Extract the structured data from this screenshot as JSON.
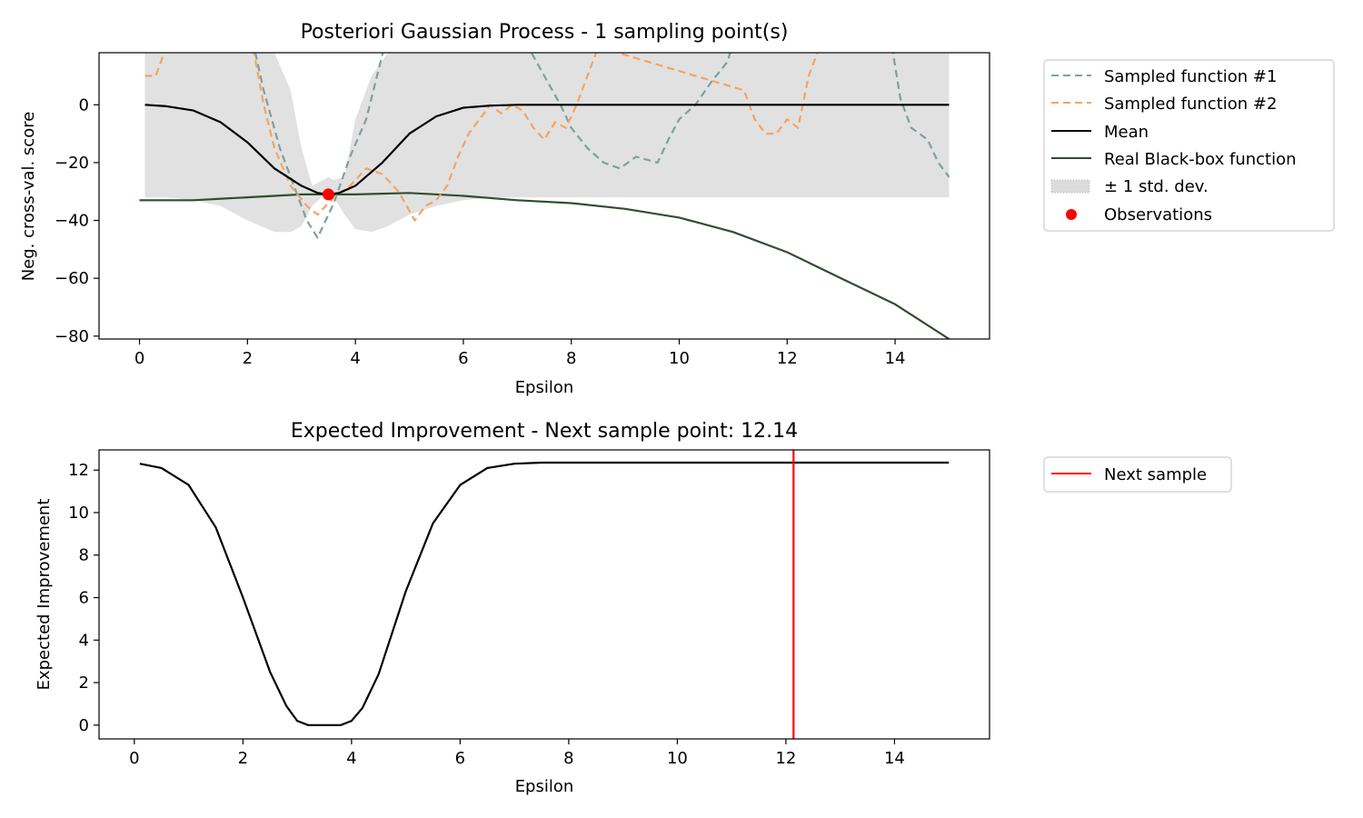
{
  "chart_data": [
    {
      "type": "line",
      "title": "Posteriori Gaussian Process - 1 sampling point(s)",
      "xlabel": "Epsilon",
      "ylabel": "Neg. cross-val. score",
      "xlim": [
        -0.75,
        15.75
      ],
      "ylim": [
        -81,
        18
      ],
      "xticks": [
        0,
        2,
        4,
        6,
        8,
        10,
        12,
        14
      ],
      "yticks": [
        -80,
        -60,
        -40,
        -20,
        0
      ],
      "ytick_labels": [
        "−80",
        "−60",
        "−40",
        "−20",
        "0"
      ],
      "grid": false,
      "legend_position": "outside-right",
      "colors": {
        "sampled1": "#7f9f9f",
        "sampled2": "#f4a460",
        "mean": "#000000",
        "real": "#2f4f2f",
        "band": "#dcdcdc",
        "observation": "#ff0000"
      },
      "series": [
        {
          "name": "Sampled function #1",
          "style": "dashed",
          "x": [
            2.0,
            2.3,
            2.6,
            2.9,
            3.1,
            3.3,
            3.6,
            3.9,
            4.2,
            4.4,
            4.6,
            6.9,
            7.2,
            7.5,
            7.8,
            8.0,
            8.3,
            8.6,
            8.9,
            9.2,
            9.6,
            9.8,
            10.0,
            10.3,
            10.6,
            10.9,
            11.0,
            13.9,
            14.1,
            14.3,
            14.6,
            14.8,
            15.0
          ],
          "y": [
            30,
            5,
            -15,
            -30,
            -40,
            -46,
            -34,
            -18,
            -5,
            10,
            25,
            25,
            20,
            10,
            0,
            -8,
            -15,
            -20,
            -22,
            -18,
            -20,
            -12,
            -5,
            0,
            8,
            15,
            22,
            25,
            2,
            -8,
            -12,
            -20,
            -25
          ]
        },
        {
          "name": "Sampled function #2",
          "style": "dashed",
          "x": [
            0.1,
            0.3,
            0.5,
            2.1,
            2.3,
            2.5,
            2.8,
            3.1,
            3.3,
            3.6,
            3.9,
            4.2,
            4.5,
            4.8,
            5.1,
            5.3,
            5.5,
            5.7,
            5.9,
            6.1,
            6.3,
            6.5,
            6.7,
            6.9,
            7.1,
            7.3,
            7.5,
            7.7,
            7.9,
            8.1,
            8.3,
            8.5,
            11.2,
            11.4,
            11.6,
            11.8,
            12.0,
            12.2,
            12.4,
            12.6
          ],
          "y": [
            10,
            10,
            20,
            20,
            0,
            -15,
            -28,
            -35,
            -38,
            -32,
            -28,
            -22,
            -24,
            -30,
            -40,
            -35,
            -33,
            -28,
            -18,
            -10,
            -5,
            0,
            -3,
            0,
            -2,
            -8,
            -12,
            -6,
            -8,
            0,
            10,
            20,
            5,
            -5,
            -10,
            -10,
            -5,
            -8,
            10,
            20
          ]
        },
        {
          "name": "Mean",
          "style": "solid",
          "x": [
            0.1,
            0.5,
            1.0,
            1.5,
            2.0,
            2.5,
            3.0,
            3.3,
            3.5,
            3.7,
            4.0,
            4.5,
            5.0,
            5.5,
            6.0,
            6.5,
            7.0,
            15.0
          ],
          "y": [
            0,
            -0.5,
            -2,
            -6,
            -13,
            -22,
            -28,
            -30.5,
            -31,
            -30.5,
            -28,
            -20,
            -10,
            -4,
            -1,
            -0.3,
            0,
            0
          ]
        },
        {
          "name": "Real Black-box function",
          "style": "solid",
          "x": [
            0.0,
            1.0,
            2.0,
            3.0,
            4.0,
            5.0,
            6.0,
            7.0,
            8.0,
            9.0,
            10.0,
            11.0,
            12.0,
            13.0,
            14.0,
            15.0
          ],
          "y": [
            -33,
            -33,
            -32,
            -31,
            -31,
            -30.5,
            -31.5,
            -33,
            -34,
            -36,
            -39,
            -44,
            -51,
            -60,
            -69,
            -81
          ]
        }
      ],
      "band": {
        "name": "± 1 std. dev.",
        "x": [
          0.1,
          0.5,
          1.0,
          1.5,
          2.0,
          2.5,
          2.8,
          3.0,
          3.2,
          3.4,
          3.5,
          3.6,
          3.8,
          4.0,
          4.3,
          4.6,
          5.0,
          5.5,
          6.0,
          6.5,
          7.0,
          15.0
        ],
        "upper": [
          18,
          18,
          18,
          18,
          18,
          18,
          5,
          -15,
          -28,
          -26,
          -25,
          -26,
          -25,
          -5,
          10,
          18,
          18,
          18,
          18,
          18,
          18,
          18
        ],
        "lower": [
          -32,
          -32,
          -33,
          -35,
          -40,
          -44,
          -44,
          -42,
          -35,
          -31.5,
          -31,
          -32,
          -38,
          -43,
          -44,
          -42,
          -38,
          -35,
          -33,
          -32,
          -32,
          -32
        ]
      },
      "observations": {
        "name": "Observations",
        "x": [
          3.5
        ],
        "y": [
          -31
        ]
      }
    },
    {
      "type": "line",
      "title": "Expected Improvement - Next sample point: 12.14",
      "xlabel": "Epsilon",
      "ylabel": "Expected Improvement",
      "xlim": [
        -0.65,
        15.75
      ],
      "ylim": [
        -0.65,
        12.95
      ],
      "xticks": [
        0,
        2,
        4,
        6,
        8,
        10,
        12,
        14
      ],
      "yticks": [
        0,
        2,
        4,
        6,
        8,
        10,
        12
      ],
      "grid": false,
      "legend_position": "outside-right",
      "colors": {
        "ei": "#000000",
        "next_sample": "#ff0000"
      },
      "series": [
        {
          "name": "",
          "style": "solid",
          "x": [
            0.1,
            0.5,
            1.0,
            1.5,
            2.0,
            2.5,
            2.8,
            3.0,
            3.2,
            3.5,
            3.8,
            4.0,
            4.2,
            4.5,
            5.0,
            5.5,
            6.0,
            6.5,
            7.0,
            7.5,
            8.0,
            15.0
          ],
          "values": [
            12.3,
            12.1,
            11.3,
            9.3,
            6.0,
            2.5,
            0.9,
            0.2,
            0.0,
            0.0,
            0.0,
            0.2,
            0.8,
            2.4,
            6.3,
            9.5,
            11.3,
            12.1,
            12.3,
            12.35,
            12.35,
            12.35
          ]
        }
      ],
      "next_sample": {
        "name": "Next sample",
        "x": 12.14
      }
    }
  ]
}
